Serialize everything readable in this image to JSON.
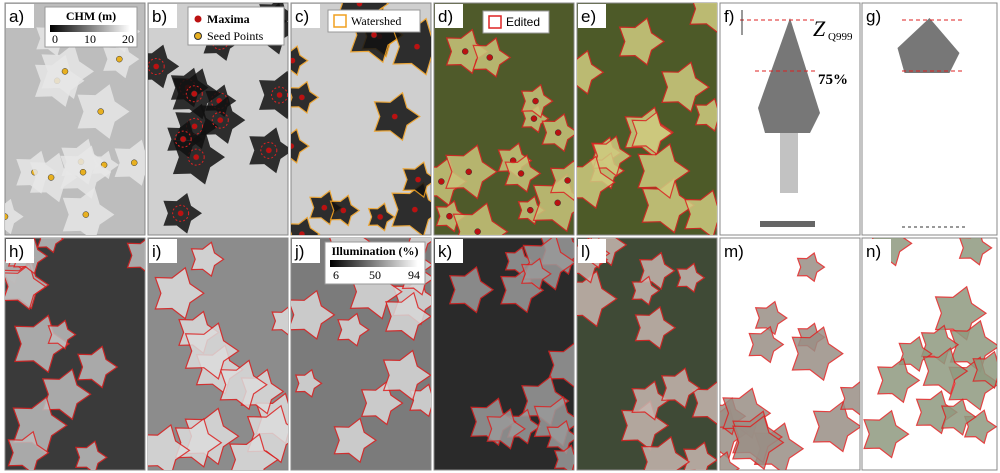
{
  "panels": [
    {
      "label": "a)"
    },
    {
      "label": "b)"
    },
    {
      "label": "c)"
    },
    {
      "label": "d)"
    },
    {
      "label": "e)"
    },
    {
      "label": "f)"
    },
    {
      "label": "g)"
    },
    {
      "label": "h)"
    },
    {
      "label": "i)"
    },
    {
      "label": "j)"
    },
    {
      "label": "k)"
    },
    {
      "label": "l)"
    },
    {
      "label": "m)"
    },
    {
      "label": "n)"
    }
  ],
  "legends": {
    "chm": {
      "title": "CHM (m)",
      "ticks": [
        "0",
        "10",
        "20"
      ]
    },
    "markers": {
      "maxima": "Maxima",
      "seed": "Seed Points"
    },
    "watershed": "Watershed",
    "edited": "Edited",
    "illumination": {
      "title": "Illumination (%)",
      "ticks": [
        "6",
        "50",
        "94"
      ]
    }
  },
  "annotations": {
    "z": "Z",
    "z_sub": "Q999",
    "pct": "75%"
  }
}
